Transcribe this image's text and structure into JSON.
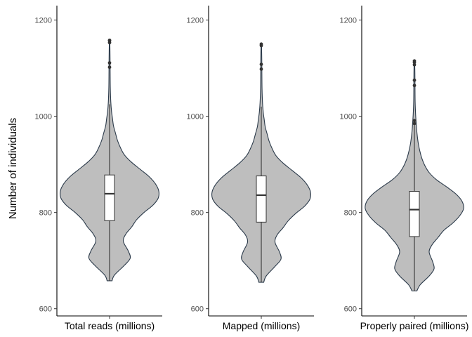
{
  "chart_data": {
    "type": "violin",
    "ylabel": "Number of individuals",
    "ylim": [
      585,
      1230
    ],
    "yticks": [
      600,
      800,
      1000,
      1200
    ],
    "grid": false,
    "fill_color": "#bebebe",
    "outline_color": "#2b3a4a",
    "panels": [
      {
        "category": "Total reads (millions)",
        "min": 658,
        "max": 1025,
        "q1": 783,
        "median": 839,
        "q3": 878,
        "outliers": [
          1102,
          1111,
          1153,
          1157,
          1158
        ],
        "profile": [
          [
            658,
            0.05
          ],
          [
            670,
            0.1
          ],
          [
            690,
            0.3
          ],
          [
            705,
            0.42
          ],
          [
            720,
            0.38
          ],
          [
            740,
            0.28
          ],
          [
            755,
            0.33
          ],
          [
            770,
            0.45
          ],
          [
            785,
            0.55
          ],
          [
            800,
            0.7
          ],
          [
            815,
            0.88
          ],
          [
            830,
            0.99
          ],
          [
            845,
            1.0
          ],
          [
            860,
            0.93
          ],
          [
            875,
            0.8
          ],
          [
            890,
            0.62
          ],
          [
            905,
            0.44
          ],
          [
            920,
            0.3
          ],
          [
            935,
            0.22
          ],
          [
            950,
            0.16
          ],
          [
            965,
            0.12
          ],
          [
            980,
            0.08
          ],
          [
            995,
            0.06
          ],
          [
            1010,
            0.04
          ],
          [
            1030,
            0.025
          ],
          [
            1060,
            0.015
          ],
          [
            1090,
            0.012
          ],
          [
            1120,
            0.01
          ],
          [
            1158,
            0.005
          ]
        ]
      },
      {
        "category": "Mapped (millions)",
        "min": 655,
        "max": 1020,
        "q1": 780,
        "median": 836,
        "q3": 876,
        "outliers": [
          1098,
          1108,
          1147,
          1150
        ],
        "profile": [
          [
            655,
            0.05
          ],
          [
            668,
            0.1
          ],
          [
            688,
            0.28
          ],
          [
            703,
            0.4
          ],
          [
            718,
            0.37
          ],
          [
            738,
            0.28
          ],
          [
            753,
            0.32
          ],
          [
            768,
            0.44
          ],
          [
            783,
            0.55
          ],
          [
            798,
            0.7
          ],
          [
            813,
            0.88
          ],
          [
            828,
            0.99
          ],
          [
            843,
            1.0
          ],
          [
            858,
            0.93
          ],
          [
            873,
            0.8
          ],
          [
            888,
            0.62
          ],
          [
            903,
            0.44
          ],
          [
            918,
            0.3
          ],
          [
            933,
            0.22
          ],
          [
            948,
            0.16
          ],
          [
            963,
            0.12
          ],
          [
            978,
            0.08
          ],
          [
            993,
            0.06
          ],
          [
            1008,
            0.04
          ],
          [
            1028,
            0.025
          ],
          [
            1058,
            0.015
          ],
          [
            1088,
            0.012
          ],
          [
            1118,
            0.01
          ],
          [
            1150,
            0.005
          ]
        ]
      },
      {
        "category": "Properly paired (millions)",
        "min": 637,
        "max": 985,
        "q1": 750,
        "median": 806,
        "q3": 844,
        "outliers": [
          985,
          991,
          1064,
          1075,
          1107,
          1112,
          1115
        ],
        "profile": [
          [
            637,
            0.05
          ],
          [
            650,
            0.12
          ],
          [
            668,
            0.3
          ],
          [
            683,
            0.4
          ],
          [
            698,
            0.37
          ],
          [
            718,
            0.3
          ],
          [
            733,
            0.36
          ],
          [
            748,
            0.48
          ],
          [
            763,
            0.6
          ],
          [
            778,
            0.78
          ],
          [
            793,
            0.92
          ],
          [
            808,
            1.0
          ],
          [
            823,
            0.97
          ],
          [
            838,
            0.85
          ],
          [
            853,
            0.66
          ],
          [
            868,
            0.45
          ],
          [
            883,
            0.3
          ],
          [
            898,
            0.21
          ],
          [
            913,
            0.15
          ],
          [
            928,
            0.11
          ],
          [
            943,
            0.08
          ],
          [
            958,
            0.06
          ],
          [
            973,
            0.045
          ],
          [
            988,
            0.035
          ],
          [
            1003,
            0.025
          ],
          [
            1030,
            0.015
          ],
          [
            1060,
            0.012
          ],
          [
            1090,
            0.01
          ],
          [
            1115,
            0.005
          ]
        ]
      }
    ]
  }
}
